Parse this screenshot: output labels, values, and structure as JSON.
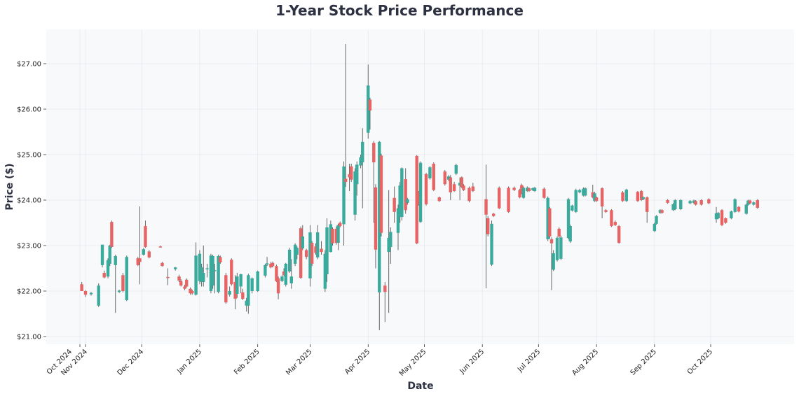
{
  "chart_data": {
    "type": "candlestick",
    "title": "1-Year Stock Price Performance",
    "xlabel": "Date",
    "ylabel": "Price ($)",
    "ylim": [
      20.83,
      27.75
    ],
    "yticks": [
      21,
      22,
      23,
      24,
      25,
      26,
      27
    ],
    "ytick_labels": [
      "$21.00",
      "$22.00",
      "$23.00",
      "$24.00",
      "$25.00",
      "$26.00",
      "$27.00"
    ],
    "xticks": [
      {
        "date": "2024-10-29",
        "label": "Oct 2024"
      },
      {
        "date": "2024-11-01",
        "label": "Nov 2024"
      },
      {
        "date": "2024-12-01",
        "label": "Dec 2024"
      },
      {
        "date": "2025-01-01",
        "label": "Jan 2025"
      },
      {
        "date": "2025-02-01",
        "label": "Feb 2025"
      },
      {
        "date": "2025-03-01",
        "label": "Mar 2025"
      },
      {
        "date": "2025-04-01",
        "label": "Apr 2025"
      },
      {
        "date": "2025-05-01",
        "label": "May 2025"
      },
      {
        "date": "2025-06-01",
        "label": "Jun 2025"
      },
      {
        "date": "2025-07-01",
        "label": "Jul 2025"
      },
      {
        "date": "2025-08-01",
        "label": "Aug 2025"
      },
      {
        "date": "2025-09-01",
        "label": "Sep 2025"
      },
      {
        "date": "2025-10-01",
        "label": "Oct 2025"
      }
    ],
    "grid": true,
    "colors": {
      "up": "#3aaa9c",
      "down": "#e86464",
      "wick": "#666666",
      "plot_bg": "#f8f9fb"
    },
    "columns": [
      "date",
      "open",
      "high",
      "low",
      "close"
    ],
    "candles": [
      [
        "2024-10-30",
        22.15,
        22.2,
        22.0,
        22.0
      ],
      [
        "2024-11-01",
        22.0,
        22.02,
        21.87,
        21.92
      ],
      [
        "2024-11-04",
        21.93,
        21.98,
        21.9,
        21.96
      ],
      [
        "2024-11-08",
        21.68,
        22.17,
        21.65,
        22.12
      ],
      [
        "2024-11-10",
        22.57,
        23.02,
        22.52,
        23.02
      ],
      [
        "2024-11-11",
        22.4,
        22.45,
        22.28,
        22.3
      ],
      [
        "2024-11-13",
        22.32,
        22.72,
        22.28,
        22.68
      ],
      [
        "2024-11-14",
        22.6,
        23.02,
        22.55,
        23.0
      ],
      [
        "2024-11-15",
        23.52,
        23.55,
        22.95,
        22.97
      ],
      [
        "2024-11-17",
        22.57,
        22.8,
        21.52,
        22.77
      ],
      [
        "2024-11-19",
        21.98,
        22.03,
        21.96,
        22.01
      ],
      [
        "2024-11-21",
        22.35,
        22.4,
        21.97,
        22.0
      ],
      [
        "2024-11-23",
        21.8,
        22.78,
        21.78,
        22.75
      ],
      [
        "2024-11-29",
        22.72,
        22.75,
        22.55,
        22.57
      ],
      [
        "2024-11-30",
        22.72,
        23.86,
        22.15,
        22.64
      ],
      [
        "2024-12-02",
        22.8,
        22.95,
        22.78,
        22.92
      ],
      [
        "2024-12-03",
        23.43,
        23.55,
        22.95,
        22.97
      ],
      [
        "2024-12-05",
        22.87,
        22.9,
        22.72,
        22.74
      ],
      [
        "2024-12-11",
        22.98,
        23.0,
        22.96,
        22.97
      ],
      [
        "2024-12-12",
        22.62,
        22.64,
        22.54,
        22.55
      ],
      [
        "2024-12-15",
        22.31,
        22.5,
        22.13,
        22.3
      ],
      [
        "2024-12-19",
        22.48,
        22.53,
        22.45,
        22.52
      ],
      [
        "2024-12-21",
        22.32,
        22.36,
        22.2,
        22.23
      ],
      [
        "2024-12-22",
        22.22,
        22.26,
        22.1,
        22.12
      ],
      [
        "2024-12-24",
        22.1,
        22.14,
        22.02,
        22.05
      ],
      [
        "2024-12-25",
        22.25,
        22.28,
        22.08,
        22.1
      ],
      [
        "2024-12-27",
        22.05,
        22.08,
        21.92,
        21.95
      ],
      [
        "2024-12-28",
        22.0,
        22.03,
        21.92,
        21.95
      ],
      [
        "2024-12-30",
        21.92,
        23.07,
        21.9,
        22.78
      ],
      [
        "2025-01-01",
        22.22,
        22.9,
        22.15,
        22.82
      ],
      [
        "2025-01-02",
        22.2,
        22.6,
        22.1,
        22.52
      ],
      [
        "2025-01-03",
        22.2,
        23.0,
        22.1,
        22.4
      ],
      [
        "2025-01-05",
        22.5,
        22.6,
        22.3,
        22.5
      ],
      [
        "2025-01-07",
        22.0,
        22.82,
        21.95,
        22.78
      ],
      [
        "2025-01-08",
        22.12,
        22.8,
        22.05,
        22.77
      ],
      [
        "2025-01-09",
        22.45,
        22.6,
        21.95,
        22.46
      ],
      [
        "2025-01-11",
        21.98,
        22.8,
        21.95,
        22.77
      ],
      [
        "2025-01-12",
        22.75,
        22.78,
        22.6,
        22.63
      ],
      [
        "2025-01-15",
        22.35,
        22.4,
        21.72,
        21.75
      ],
      [
        "2025-01-17",
        21.92,
        22.1,
        21.88,
        22.0
      ],
      [
        "2025-01-18",
        22.69,
        22.72,
        22.12,
        22.15
      ],
      [
        "2025-01-20",
        22.2,
        22.35,
        21.6,
        21.83
      ],
      [
        "2025-01-21",
        21.94,
        22.4,
        21.85,
        22.32
      ],
      [
        "2025-01-23",
        22.1,
        22.38,
        21.95,
        22.37
      ],
      [
        "2025-01-24",
        21.97,
        22.05,
        21.8,
        21.83
      ],
      [
        "2025-01-26",
        21.68,
        21.85,
        21.55,
        21.79
      ],
      [
        "2025-01-27",
        21.68,
        22.38,
        21.5,
        22.35
      ],
      [
        "2025-01-29",
        22.0,
        22.3,
        21.95,
        22.28
      ],
      [
        "2025-02-01",
        22.0,
        22.45,
        21.98,
        22.43
      ],
      [
        "2025-02-05",
        22.34,
        22.6,
        22.3,
        22.57
      ],
      [
        "2025-02-06",
        22.58,
        22.75,
        22.55,
        22.61
      ],
      [
        "2025-02-08",
        22.6,
        22.64,
        22.5,
        22.52
      ],
      [
        "2025-02-09",
        22.62,
        22.65,
        22.52,
        22.55
      ],
      [
        "2025-02-11",
        22.55,
        22.58,
        22.2,
        22.22
      ],
      [
        "2025-02-12",
        22.28,
        22.32,
        21.82,
        21.95
      ],
      [
        "2025-02-14",
        22.22,
        22.35,
        22.2,
        22.32
      ],
      [
        "2025-02-15",
        22.43,
        22.5,
        22.33,
        22.35
      ],
      [
        "2025-02-16",
        22.14,
        22.62,
        22.1,
        22.6
      ],
      [
        "2025-02-18",
        22.43,
        22.95,
        22.4,
        22.91
      ],
      [
        "2025-02-19",
        22.17,
        22.7,
        22.05,
        22.32
      ],
      [
        "2025-02-21",
        22.6,
        23.05,
        22.55,
        23.02
      ],
      [
        "2025-02-22",
        22.8,
        22.98,
        22.7,
        22.95
      ],
      [
        "2025-02-24",
        23.38,
        23.42,
        22.27,
        22.29
      ],
      [
        "2025-02-25",
        22.94,
        23.45,
        22.9,
        23.2
      ],
      [
        "2025-02-27",
        22.9,
        22.93,
        22.7,
        22.75
      ],
      [
        "2025-03-01",
        22.28,
        23.45,
        22.1,
        23.29
      ],
      [
        "2025-03-02",
        23.06,
        23.1,
        22.55,
        22.6
      ],
      [
        "2025-03-04",
        22.98,
        23.05,
        22.8,
        22.84
      ],
      [
        "2025-03-05",
        22.74,
        23.45,
        22.7,
        23.29
      ],
      [
        "2025-03-07",
        22.93,
        23.1,
        22.8,
        22.86
      ],
      [
        "2025-03-09",
        22.05,
        22.9,
        21.98,
        22.82
      ],
      [
        "2025-03-10",
        22.37,
        23.6,
        22.2,
        23.4
      ],
      [
        "2025-03-12",
        22.86,
        23.55,
        22.85,
        23.47
      ],
      [
        "2025-03-13",
        23.37,
        23.4,
        23.0,
        23.05
      ],
      [
        "2025-03-15",
        23.37,
        23.42,
        23.02,
        23.06
      ],
      [
        "2025-03-16",
        23.06,
        23.48,
        22.9,
        23.45
      ],
      [
        "2025-03-17",
        23.5,
        23.53,
        23.4,
        23.43
      ],
      [
        "2025-03-19",
        23.47,
        24.85,
        23.0,
        24.74
      ],
      [
        "2025-03-20",
        24.47,
        27.43,
        24.29,
        24.4
      ],
      [
        "2025-03-22",
        24.57,
        24.8,
        24.2,
        24.5
      ],
      [
        "2025-03-23",
        24.74,
        24.8,
        24.4,
        24.45
      ],
      [
        "2025-03-25",
        23.68,
        24.7,
        23.55,
        24.63
      ],
      [
        "2025-03-26",
        24.35,
        24.85,
        24.1,
        24.78
      ],
      [
        "2025-03-28",
        24.76,
        25.0,
        24.7,
        24.94
      ],
      [
        "2025-03-29",
        24.83,
        25.58,
        23.82,
        25.28
      ],
      [
        "2025-04-01",
        25.48,
        26.98,
        25.35,
        26.52
      ],
      [
        "2025-04-02",
        26.21,
        26.25,
        25.55,
        25.97
      ],
      [
        "2025-04-04",
        25.26,
        25.3,
        23.5,
        24.83
      ],
      [
        "2025-04-05",
        24.28,
        24.35,
        22.5,
        22.91
      ],
      [
        "2025-04-07",
        21.97,
        25.3,
        21.14,
        25.28
      ],
      [
        "2025-04-08",
        24.98,
        25.02,
        23.2,
        23.28
      ],
      [
        "2025-04-10",
        22.12,
        22.2,
        21.32,
        21.98
      ],
      [
        "2025-04-12",
        22.86,
        24.22,
        21.52,
        23.17
      ],
      [
        "2025-04-13",
        22.97,
        23.4,
        22.6,
        23.3
      ],
      [
        "2025-04-15",
        24.05,
        24.3,
        23.5,
        23.74
      ],
      [
        "2025-04-17",
        23.28,
        23.9,
        22.9,
        23.82
      ],
      [
        "2025-04-18",
        23.63,
        24.4,
        23.5,
        24.32
      ],
      [
        "2025-04-19",
        23.63,
        24.72,
        23.55,
        24.7
      ],
      [
        "2025-04-21",
        24.46,
        24.7,
        23.7,
        23.78
      ],
      [
        "2025-04-22",
        23.94,
        24.05,
        23.9,
        24.02
      ],
      [
        "2025-04-27",
        24.97,
        24.99,
        23.03,
        23.05
      ],
      [
        "2025-04-28",
        24.17,
        24.2,
        23.88,
        23.91
      ],
      [
        "2025-04-29",
        23.52,
        24.85,
        23.5,
        24.82
      ],
      [
        "2025-05-02",
        24.57,
        24.6,
        23.88,
        23.91
      ],
      [
        "2025-05-04",
        24.48,
        24.75,
        24.45,
        24.72
      ],
      [
        "2025-05-06",
        24.8,
        24.83,
        24.2,
        24.22
      ],
      [
        "2025-05-09",
        24.06,
        24.08,
        23.96,
        23.98
      ],
      [
        "2025-05-12",
        24.63,
        24.66,
        24.32,
        24.35
      ],
      [
        "2025-05-14",
        24.45,
        24.55,
        24.42,
        24.52
      ],
      [
        "2025-05-15",
        24.5,
        24.55,
        24.0,
        24.17
      ],
      [
        "2025-05-17",
        24.35,
        24.4,
        24.18,
        24.2
      ],
      [
        "2025-05-18",
        24.58,
        24.8,
        24.55,
        24.77
      ],
      [
        "2025-05-20",
        24.32,
        24.5,
        24.0,
        24.38
      ],
      [
        "2025-05-21",
        24.5,
        24.52,
        24.26,
        24.29
      ],
      [
        "2025-05-22",
        24.32,
        24.35,
        24.2,
        24.22
      ],
      [
        "2025-05-25",
        24.27,
        24.3,
        23.95,
        23.98
      ],
      [
        "2025-05-27",
        24.3,
        24.38,
        24.18,
        24.2
      ],
      [
        "2025-06-03",
        24.02,
        24.78,
        22.06,
        23.68
      ],
      [
        "2025-06-04",
        23.6,
        23.65,
        23.2,
        23.25
      ],
      [
        "2025-06-06",
        22.58,
        23.55,
        22.55,
        23.48
      ],
      [
        "2025-06-07",
        23.7,
        23.72,
        23.63,
        23.65
      ],
      [
        "2025-06-10",
        24.27,
        24.3,
        23.8,
        23.82
      ],
      [
        "2025-06-15",
        24.27,
        24.3,
        23.72,
        23.74
      ],
      [
        "2025-06-18",
        24.27,
        24.3,
        24.2,
        24.22
      ],
      [
        "2025-06-21",
        24.22,
        24.25,
        24.04,
        24.06
      ],
      [
        "2025-06-22",
        24.33,
        24.36,
        24.13,
        24.15
      ],
      [
        "2025-06-23",
        24.05,
        24.3,
        24.03,
        24.27
      ],
      [
        "2025-06-25",
        24.2,
        24.3,
        24.18,
        24.27
      ],
      [
        "2025-06-26",
        24.26,
        24.28,
        24.18,
        24.2
      ],
      [
        "2025-06-28",
        24.22,
        24.28,
        24.2,
        24.26
      ],
      [
        "2025-06-29",
        24.2,
        24.29,
        24.18,
        24.27
      ],
      [
        "2025-07-04",
        24.25,
        24.28,
        24.03,
        24.05
      ],
      [
        "2025-07-06",
        23.14,
        24.08,
        23.1,
        24.05
      ],
      [
        "2025-07-07",
        23.82,
        23.85,
        23.15,
        23.2
      ],
      [
        "2025-07-08",
        23.14,
        23.18,
        22.02,
        23.05
      ],
      [
        "2025-07-09",
        22.47,
        22.9,
        22.44,
        22.83
      ],
      [
        "2025-07-11",
        22.68,
        23.2,
        22.65,
        23.17
      ],
      [
        "2025-07-12",
        23.37,
        23.4,
        23.17,
        23.2
      ],
      [
        "2025-07-13",
        22.71,
        23.22,
        22.68,
        23.18
      ],
      [
        "2025-07-17",
        23.17,
        24.05,
        23.14,
        24.02
      ],
      [
        "2025-07-18",
        23.09,
        23.46,
        23.06,
        23.43
      ],
      [
        "2025-07-19",
        23.77,
        23.9,
        23.75,
        23.88
      ],
      [
        "2025-07-21",
        23.74,
        24.25,
        23.72,
        24.22
      ],
      [
        "2025-07-23",
        24.17,
        24.25,
        24.15,
        24.22
      ],
      [
        "2025-07-25",
        24.1,
        24.28,
        24.08,
        24.25
      ],
      [
        "2025-07-26",
        24.1,
        24.28,
        24.08,
        24.26
      ],
      [
        "2025-07-30",
        24.17,
        24.34,
        24.04,
        24.06
      ],
      [
        "2025-07-31",
        23.98,
        24.18,
        23.96,
        24.15
      ],
      [
        "2025-08-01",
        24.06,
        24.08,
        23.96,
        23.98
      ],
      [
        "2025-08-04",
        24.26,
        24.28,
        23.6,
        23.86
      ],
      [
        "2025-08-06",
        23.78,
        23.8,
        23.72,
        23.74
      ],
      [
        "2025-08-09",
        23.78,
        23.8,
        23.41,
        23.43
      ],
      [
        "2025-08-11",
        23.52,
        23.55,
        23.43,
        23.45
      ],
      [
        "2025-08-13",
        23.43,
        23.45,
        23.04,
        23.06
      ],
      [
        "2025-08-15",
        24.17,
        24.2,
        23.96,
        23.98
      ],
      [
        "2025-08-17",
        23.98,
        24.25,
        23.96,
        24.23
      ],
      [
        "2025-08-23",
        24.18,
        24.2,
        23.96,
        23.98
      ],
      [
        "2025-08-25",
        24.2,
        24.22,
        23.98,
        24.0
      ],
      [
        "2025-08-26",
        24.02,
        24.08,
        24.0,
        24.06
      ],
      [
        "2025-08-28",
        24.06,
        24.08,
        23.5,
        23.74
      ],
      [
        "2025-09-01",
        23.32,
        23.5,
        23.3,
        23.48
      ],
      [
        "2025-09-02",
        23.48,
        23.67,
        23.46,
        23.65
      ],
      [
        "2025-09-04",
        23.72,
        23.8,
        23.7,
        23.78
      ],
      [
        "2025-09-05",
        23.78,
        23.8,
        23.7,
        23.72
      ],
      [
        "2025-09-08",
        24.0,
        24.02,
        23.92,
        23.94
      ],
      [
        "2025-09-11",
        23.78,
        23.93,
        23.76,
        23.91
      ],
      [
        "2025-09-12",
        23.8,
        24.02,
        23.78,
        24.0
      ],
      [
        "2025-09-15",
        23.8,
        24.02,
        23.78,
        24.0
      ],
      [
        "2025-09-20",
        23.93,
        24.0,
        23.91,
        23.98
      ],
      [
        "2025-09-22",
        23.94,
        24.01,
        23.92,
        23.99
      ],
      [
        "2025-09-23",
        23.98,
        24.0,
        23.88,
        23.9
      ],
      [
        "2025-09-26",
        24.0,
        24.02,
        23.88,
        23.9
      ],
      [
        "2025-09-30",
        24.02,
        24.04,
        23.91,
        23.93
      ],
      [
        "2025-10-04",
        23.58,
        23.85,
        23.5,
        23.71
      ],
      [
        "2025-10-05",
        23.6,
        23.74,
        23.58,
        23.72
      ],
      [
        "2025-10-07",
        23.78,
        23.8,
        23.43,
        23.45
      ],
      [
        "2025-10-09",
        23.6,
        23.62,
        23.48,
        23.5
      ],
      [
        "2025-10-12",
        23.6,
        23.77,
        23.58,
        23.75
      ],
      [
        "2025-10-14",
        23.74,
        24.04,
        23.72,
        24.02
      ],
      [
        "2025-10-16",
        23.85,
        23.87,
        23.73,
        23.75
      ],
      [
        "2025-10-20",
        23.7,
        23.92,
        23.68,
        23.9
      ],
      [
        "2025-10-21",
        23.9,
        24.01,
        23.88,
        23.99
      ],
      [
        "2025-10-22",
        23.99,
        24.01,
        23.91,
        23.93
      ],
      [
        "2025-10-24",
        23.9,
        23.97,
        23.88,
        23.95
      ],
      [
        "2025-10-26",
        24.0,
        24.02,
        23.81,
        23.83
      ]
    ]
  }
}
